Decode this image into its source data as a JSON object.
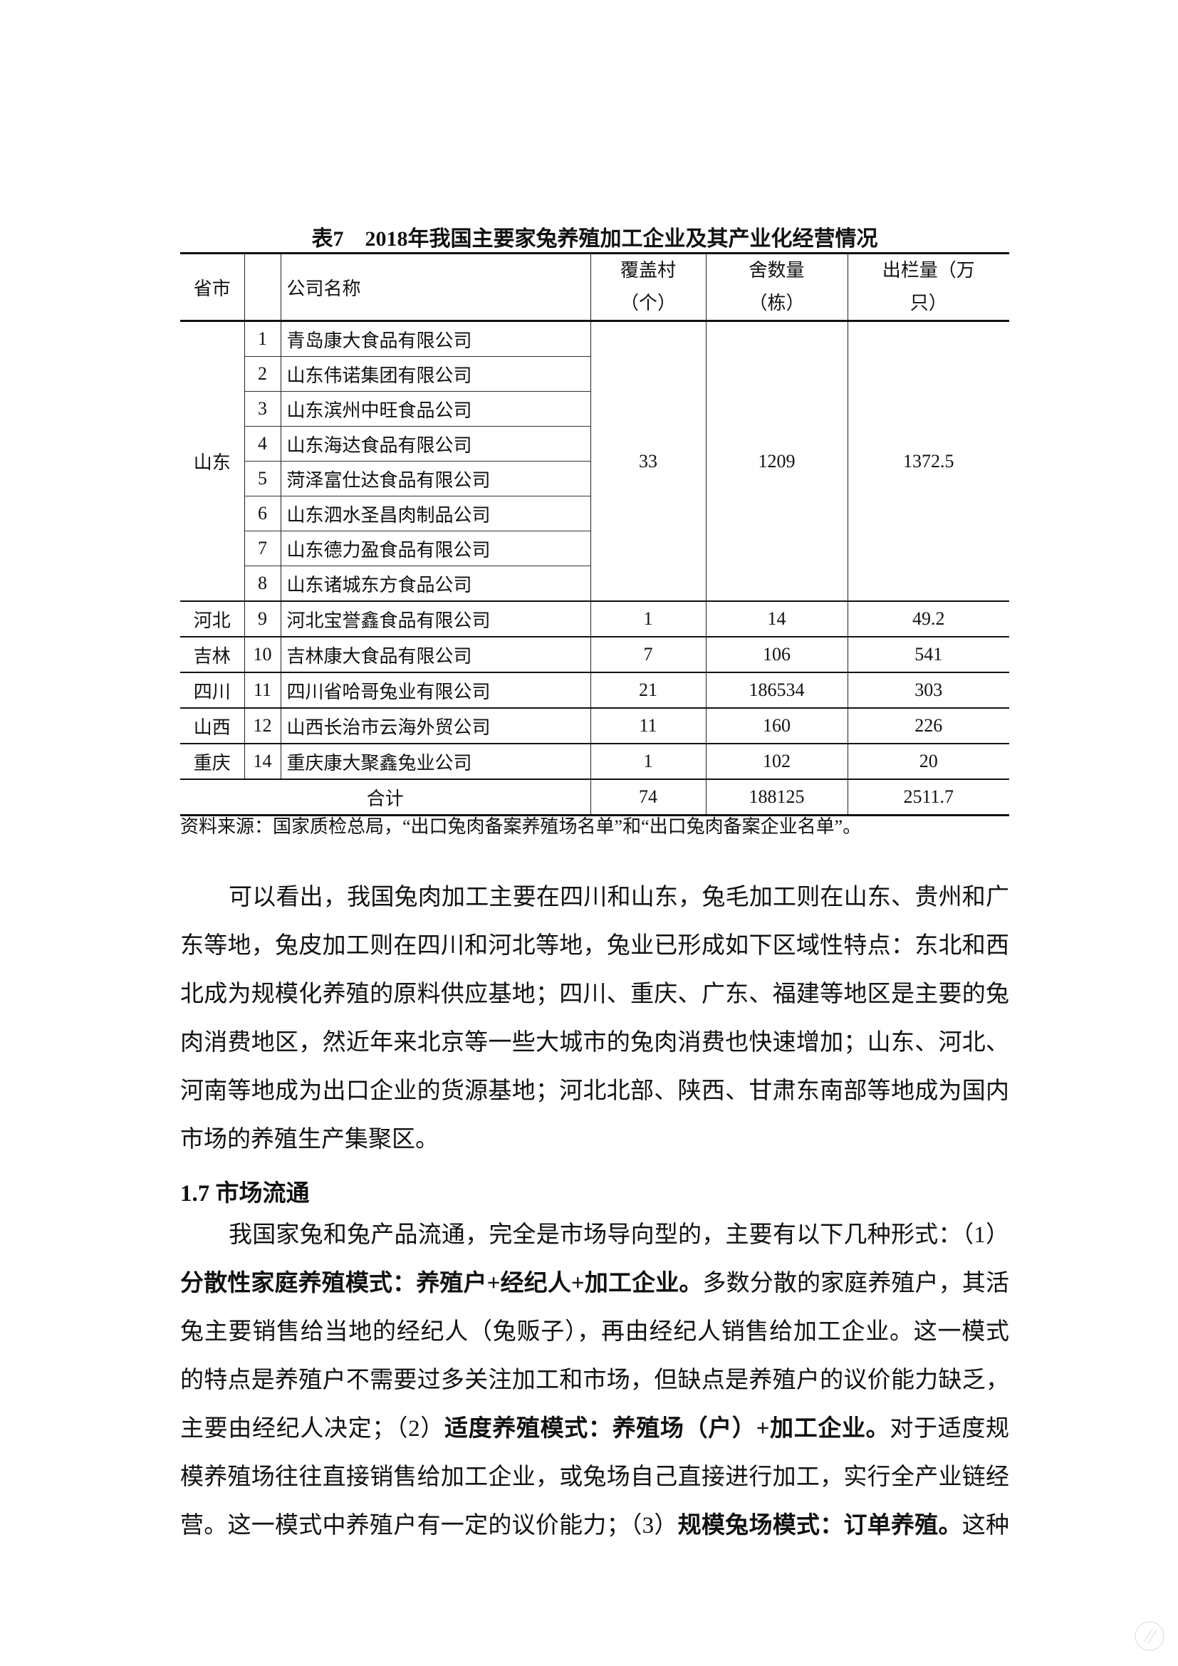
{
  "table": {
    "title": "表7　2018年我国主要家兔养殖加工企业及其产业化经营情况",
    "headers": {
      "province": "省市",
      "company": "公司名称",
      "villages": [
        "覆盖村",
        "（个）"
      ],
      "sheds": [
        "舍数量",
        "（栋）"
      ],
      "output": [
        "出栏量（万",
        "只）"
      ]
    },
    "groups": [
      {
        "province": "山东",
        "villages": "33",
        "sheds": "1209",
        "output": "1372.5",
        "companies": [
          {
            "no": "1",
            "name": "青岛康大食品有限公司"
          },
          {
            "no": "2",
            "name": "山东伟诺集团有限公司"
          },
          {
            "no": "3",
            "name": "山东滨州中旺食品公司"
          },
          {
            "no": "4",
            "name": "山东海达食品有限公司"
          },
          {
            "no": "5",
            "name": "菏泽富仕达食品有限公司"
          },
          {
            "no": "6",
            "name": "山东泗水圣昌肉制品公司"
          },
          {
            "no": "7",
            "name": "山东德力盈食品有限公司"
          },
          {
            "no": "8",
            "name": "山东诸城东方食品公司"
          }
        ]
      },
      {
        "province": "河北",
        "villages": "1",
        "sheds": "14",
        "output": "49.2",
        "companies": [
          {
            "no": "9",
            "name": "河北宝誉鑫食品有限公司"
          }
        ]
      },
      {
        "province": "吉林",
        "villages": "7",
        "sheds": "106",
        "output": "541",
        "companies": [
          {
            "no": "10",
            "name": "吉林康大食品有限公司"
          }
        ]
      },
      {
        "province": "四川",
        "villages": "21",
        "sheds": "186534",
        "output": "303",
        "companies": [
          {
            "no": "11",
            "name": "四川省哈哥兔业有限公司"
          }
        ]
      },
      {
        "province": "山西",
        "villages": "11",
        "sheds": "160",
        "output": "226",
        "companies": [
          {
            "no": "12",
            "name": "山西长治市云海外贸公司"
          }
        ]
      },
      {
        "province": "重庆",
        "villages": "1",
        "sheds": "102",
        "output": "20",
        "companies": [
          {
            "no": "14",
            "name": "重庆康大聚鑫兔业公司"
          }
        ]
      }
    ],
    "total": {
      "label": "合计",
      "villages": "74",
      "sheds": "188125",
      "output": "2511.7"
    },
    "source": "资料来源：国家质检总局，“出口兔肉备案养殖场名单”和“出口兔肉备案企业名单”。"
  },
  "paragraph1": [
    "可以看出，我国兔肉加工主要在四川和山东，兔毛加工则在山东、贵州和广",
    "东等地，兔皮加工则在四川和河北等地，兔业已形成如下区域性特点：东北和西",
    "北成为规模化养殖的原料供应基地；四川、重庆、广东、福建等地区是主要的兔",
    "肉消费地区，然近年来北京等一些大城市的兔肉消费也快速增加；山东、河北、",
    "河南等地成为出口企业的货源基地；河北北部、陕西、甘肃东南部等地成为国内",
    "市场的养殖生产集聚区。"
  ],
  "section_heading": "1.7 市场流通",
  "paragraph2": [
    [
      {
        "t": "我国家兔和兔产品流通，完全是市场导向型的，主要有以下几种形式：（1）",
        "b": false
      }
    ],
    [
      {
        "t": "分散性家庭养殖模式：养殖户+经纪人+加工企业。",
        "b": true
      },
      {
        "t": "多数分散的家庭养殖户，其活",
        "b": false
      }
    ],
    [
      {
        "t": "兔主要销售给当地的经纪人（兔贩子），再由经纪人销售给加工企业。这一模式",
        "b": false
      }
    ],
    [
      {
        "t": "的特点是养殖户不需要过多关注加工和市场，但缺点是养殖户的议价能力缺乏，",
        "b": false
      }
    ],
    [
      {
        "t": "主要由经纪人决定；（2）",
        "b": false
      },
      {
        "t": "适度养殖模式：养殖场（户）+加工企业。",
        "b": true
      },
      {
        "t": "对于适度规",
        "b": false
      }
    ],
    [
      {
        "t": "模养殖场往往直接销售给加工企业，或兔场自己直接进行加工，实行全产业链经",
        "b": false
      }
    ],
    [
      {
        "t": "营。这一模式中养殖户有一定的议价能力；（3）",
        "b": false
      },
      {
        "t": "规模兔场模式：订单养殖。",
        "b": true
      },
      {
        "t": "这种",
        "b": false
      }
    ]
  ]
}
